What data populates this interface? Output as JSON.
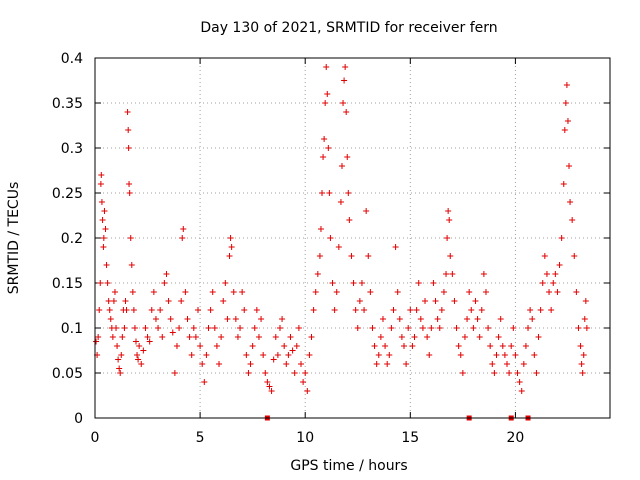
{
  "chart_data": {
    "type": "scatter",
    "title": "Day 130 of 2021, SRMTID for receiver fern",
    "xlabel": "GPS time / hours",
    "ylabel": "SRMTID / TECUs",
    "xlim": [
      0,
      24.5
    ],
    "ylim": [
      0,
      0.4
    ],
    "xticks": [
      0,
      5,
      10,
      15,
      20
    ],
    "xtick_labels": [
      "0",
      "5",
      "10",
      "15",
      "20"
    ],
    "yticks": [
      0,
      0.05,
      0.1,
      0.15,
      0.2,
      0.25,
      0.3,
      0.35,
      0.4
    ],
    "ytick_labels": [
      "0",
      "0.05",
      "0.1",
      "0.15",
      "0.2",
      "0.25",
      "0.3",
      "0.35",
      "0.4"
    ],
    "grid": true,
    "marker": "+",
    "color": "#e00000",
    "zero_markers_x": [
      8.2,
      17.8,
      19.8,
      20.6
    ],
    "series": [
      {
        "name": "SRMTID",
        "points": [
          [
            0.05,
            0.085
          ],
          [
            0.1,
            0.07
          ],
          [
            0.15,
            0.09
          ],
          [
            0.2,
            0.12
          ],
          [
            0.25,
            0.15
          ],
          [
            0.28,
            0.26
          ],
          [
            0.3,
            0.27
          ],
          [
            0.33,
            0.24
          ],
          [
            0.36,
            0.22
          ],
          [
            0.4,
            0.19
          ],
          [
            0.42,
            0.2
          ],
          [
            0.45,
            0.23
          ],
          [
            0.5,
            0.21
          ],
          [
            0.55,
            0.17
          ],
          [
            0.6,
            0.15
          ],
          [
            0.65,
            0.13
          ],
          [
            0.7,
            0.12
          ],
          [
            0.75,
            0.11
          ],
          [
            0.8,
            0.1
          ],
          [
            0.85,
            0.09
          ],
          [
            0.9,
            0.13
          ],
          [
            0.95,
            0.14
          ],
          [
            1.0,
            0.1
          ],
          [
            1.05,
            0.08
          ],
          [
            1.1,
            0.065
          ],
          [
            1.15,
            0.055
          ],
          [
            1.2,
            0.05
          ],
          [
            1.25,
            0.07
          ],
          [
            1.3,
            0.09
          ],
          [
            1.35,
            0.12
          ],
          [
            1.4,
            0.1
          ],
          [
            1.45,
            0.13
          ],
          [
            1.5,
            0.12
          ],
          [
            1.55,
            0.34
          ],
          [
            1.58,
            0.32
          ],
          [
            1.6,
            0.3
          ],
          [
            1.62,
            0.26
          ],
          [
            1.65,
            0.25
          ],
          [
            1.7,
            0.2
          ],
          [
            1.75,
            0.17
          ],
          [
            1.8,
            0.14
          ],
          [
            1.85,
            0.12
          ],
          [
            1.9,
            0.1
          ],
          [
            1.95,
            0.085
          ],
          [
            2.0,
            0.07
          ],
          [
            2.05,
            0.065
          ],
          [
            2.1,
            0.08
          ],
          [
            2.2,
            0.06
          ],
          [
            2.3,
            0.075
          ],
          [
            2.4,
            0.1
          ],
          [
            2.5,
            0.09
          ],
          [
            2.6,
            0.085
          ],
          [
            2.7,
            0.12
          ],
          [
            2.8,
            0.14
          ],
          [
            2.9,
            0.11
          ],
          [
            3.0,
            0.1
          ],
          [
            3.1,
            0.12
          ],
          [
            3.2,
            0.09
          ],
          [
            3.3,
            0.15
          ],
          [
            3.4,
            0.16
          ],
          [
            3.5,
            0.13
          ],
          [
            3.6,
            0.11
          ],
          [
            3.7,
            0.095
          ],
          [
            3.8,
            0.05
          ],
          [
            3.9,
            0.08
          ],
          [
            4.0,
            0.1
          ],
          [
            4.1,
            0.13
          ],
          [
            4.15,
            0.2
          ],
          [
            4.2,
            0.21
          ],
          [
            4.3,
            0.14
          ],
          [
            4.4,
            0.11
          ],
          [
            4.5,
            0.09
          ],
          [
            4.6,
            0.07
          ],
          [
            4.7,
            0.1
          ],
          [
            4.8,
            0.09
          ],
          [
            4.9,
            0.12
          ],
          [
            5.0,
            0.08
          ],
          [
            5.1,
            0.06
          ],
          [
            5.2,
            0.04
          ],
          [
            5.3,
            0.07
          ],
          [
            5.4,
            0.1
          ],
          [
            5.5,
            0.12
          ],
          [
            5.6,
            0.14
          ],
          [
            5.7,
            0.1
          ],
          [
            5.8,
            0.08
          ],
          [
            5.9,
            0.06
          ],
          [
            6.0,
            0.09
          ],
          [
            6.1,
            0.13
          ],
          [
            6.2,
            0.15
          ],
          [
            6.3,
            0.11
          ],
          [
            6.4,
            0.18
          ],
          [
            6.45,
            0.2
          ],
          [
            6.5,
            0.19
          ],
          [
            6.6,
            0.14
          ],
          [
            6.7,
            0.11
          ],
          [
            6.8,
            0.09
          ],
          [
            6.9,
            0.1
          ],
          [
            7.0,
            0.14
          ],
          [
            7.1,
            0.12
          ],
          [
            7.2,
            0.07
          ],
          [
            7.3,
            0.05
          ],
          [
            7.4,
            0.06
          ],
          [
            7.5,
            0.08
          ],
          [
            7.6,
            0.1
          ],
          [
            7.7,
            0.12
          ],
          [
            7.8,
            0.09
          ],
          [
            7.9,
            0.11
          ],
          [
            8.0,
            0.07
          ],
          [
            8.1,
            0.05
          ],
          [
            8.2,
            0.04
          ],
          [
            8.3,
            0.035
          ],
          [
            8.4,
            0.03
          ],
          [
            8.5,
            0.065
          ],
          [
            8.6,
            0.09
          ],
          [
            8.7,
            0.07
          ],
          [
            8.8,
            0.1
          ],
          [
            8.9,
            0.11
          ],
          [
            9.0,
            0.08
          ],
          [
            9.1,
            0.06
          ],
          [
            9.2,
            0.07
          ],
          [
            9.3,
            0.09
          ],
          [
            9.4,
            0.075
          ],
          [
            9.5,
            0.05
          ],
          [
            9.6,
            0.08
          ],
          [
            9.7,
            0.1
          ],
          [
            9.8,
            0.06
          ],
          [
            9.9,
            0.04
          ],
          [
            10.0,
            0.05
          ],
          [
            10.1,
            0.03
          ],
          [
            10.2,
            0.07
          ],
          [
            10.3,
            0.09
          ],
          [
            10.4,
            0.12
          ],
          [
            10.5,
            0.14
          ],
          [
            10.6,
            0.16
          ],
          [
            10.7,
            0.18
          ],
          [
            10.75,
            0.21
          ],
          [
            10.8,
            0.25
          ],
          [
            10.85,
            0.29
          ],
          [
            10.9,
            0.31
          ],
          [
            10.95,
            0.35
          ],
          [
            11.0,
            0.39
          ],
          [
            11.05,
            0.36
          ],
          [
            11.1,
            0.3
          ],
          [
            11.15,
            0.25
          ],
          [
            11.2,
            0.2
          ],
          [
            11.3,
            0.15
          ],
          [
            11.4,
            0.12
          ],
          [
            11.5,
            0.14
          ],
          [
            11.6,
            0.19
          ],
          [
            11.7,
            0.24
          ],
          [
            11.75,
            0.28
          ],
          [
            11.8,
            0.35
          ],
          [
            11.85,
            0.375
          ],
          [
            11.9,
            0.39
          ],
          [
            11.95,
            0.34
          ],
          [
            12.0,
            0.29
          ],
          [
            12.05,
            0.25
          ],
          [
            12.1,
            0.22
          ],
          [
            12.2,
            0.18
          ],
          [
            12.3,
            0.15
          ],
          [
            12.4,
            0.12
          ],
          [
            12.5,
            0.1
          ],
          [
            12.6,
            0.13
          ],
          [
            12.7,
            0.15
          ],
          [
            12.8,
            0.12
          ],
          [
            12.9,
            0.23
          ],
          [
            13.0,
            0.18
          ],
          [
            13.1,
            0.14
          ],
          [
            13.2,
            0.1
          ],
          [
            13.3,
            0.08
          ],
          [
            13.4,
            0.06
          ],
          [
            13.5,
            0.07
          ],
          [
            13.6,
            0.09
          ],
          [
            13.7,
            0.11
          ],
          [
            13.8,
            0.08
          ],
          [
            13.9,
            0.06
          ],
          [
            14.0,
            0.07
          ],
          [
            14.1,
            0.1
          ],
          [
            14.2,
            0.12
          ],
          [
            14.3,
            0.19
          ],
          [
            14.4,
            0.14
          ],
          [
            14.5,
            0.11
          ],
          [
            14.6,
            0.09
          ],
          [
            14.7,
            0.08
          ],
          [
            14.8,
            0.06
          ],
          [
            14.9,
            0.1
          ],
          [
            15.0,
            0.12
          ],
          [
            15.1,
            0.08
          ],
          [
            15.2,
            0.09
          ],
          [
            15.3,
            0.12
          ],
          [
            15.4,
            0.15
          ],
          [
            15.5,
            0.11
          ],
          [
            15.6,
            0.1
          ],
          [
            15.7,
            0.13
          ],
          [
            15.8,
            0.09
          ],
          [
            15.9,
            0.07
          ],
          [
            16.0,
            0.1
          ],
          [
            16.1,
            0.15
          ],
          [
            16.2,
            0.13
          ],
          [
            16.3,
            0.11
          ],
          [
            16.4,
            0.1
          ],
          [
            16.5,
            0.12
          ],
          [
            16.6,
            0.14
          ],
          [
            16.7,
            0.16
          ],
          [
            16.75,
            0.2
          ],
          [
            16.8,
            0.23
          ],
          [
            16.85,
            0.22
          ],
          [
            16.9,
            0.18
          ],
          [
            17.0,
            0.16
          ],
          [
            17.1,
            0.13
          ],
          [
            17.2,
            0.1
          ],
          [
            17.3,
            0.08
          ],
          [
            17.4,
            0.07
          ],
          [
            17.5,
            0.05
          ],
          [
            17.6,
            0.09
          ],
          [
            17.7,
            0.11
          ],
          [
            17.8,
            0.14
          ],
          [
            17.9,
            0.12
          ],
          [
            18.0,
            0.1
          ],
          [
            18.1,
            0.13
          ],
          [
            18.2,
            0.11
          ],
          [
            18.3,
            0.09
          ],
          [
            18.4,
            0.12
          ],
          [
            18.5,
            0.16
          ],
          [
            18.6,
            0.14
          ],
          [
            18.7,
            0.1
          ],
          [
            18.8,
            0.08
          ],
          [
            18.9,
            0.06
          ],
          [
            19.0,
            0.05
          ],
          [
            19.1,
            0.07
          ],
          [
            19.2,
            0.09
          ],
          [
            19.3,
            0.11
          ],
          [
            19.4,
            0.08
          ],
          [
            19.5,
            0.07
          ],
          [
            19.6,
            0.06
          ],
          [
            19.7,
            0.05
          ],
          [
            19.8,
            0.08
          ],
          [
            19.9,
            0.1
          ],
          [
            20.0,
            0.07
          ],
          [
            20.1,
            0.05
          ],
          [
            20.2,
            0.04
          ],
          [
            20.3,
            0.03
          ],
          [
            20.4,
            0.06
          ],
          [
            20.5,
            0.08
          ],
          [
            20.6,
            0.1
          ],
          [
            20.7,
            0.12
          ],
          [
            20.8,
            0.11
          ],
          [
            20.9,
            0.07
          ],
          [
            21.0,
            0.05
          ],
          [
            21.1,
            0.09
          ],
          [
            21.2,
            0.12
          ],
          [
            21.3,
            0.15
          ],
          [
            21.4,
            0.18
          ],
          [
            21.5,
            0.16
          ],
          [
            21.6,
            0.14
          ],
          [
            21.7,
            0.12
          ],
          [
            21.8,
            0.15
          ],
          [
            21.9,
            0.16
          ],
          [
            22.0,
            0.14
          ],
          [
            22.1,
            0.17
          ],
          [
            22.2,
            0.2
          ],
          [
            22.3,
            0.26
          ],
          [
            22.35,
            0.32
          ],
          [
            22.4,
            0.35
          ],
          [
            22.45,
            0.37
          ],
          [
            22.5,
            0.33
          ],
          [
            22.55,
            0.28
          ],
          [
            22.6,
            0.24
          ],
          [
            22.7,
            0.22
          ],
          [
            22.8,
            0.18
          ],
          [
            22.9,
            0.14
          ],
          [
            23.0,
            0.1
          ],
          [
            23.1,
            0.08
          ],
          [
            23.15,
            0.06
          ],
          [
            23.2,
            0.05
          ],
          [
            23.25,
            0.07
          ],
          [
            23.3,
            0.11
          ],
          [
            23.35,
            0.13
          ],
          [
            23.4,
            0.1
          ]
        ]
      }
    ]
  }
}
